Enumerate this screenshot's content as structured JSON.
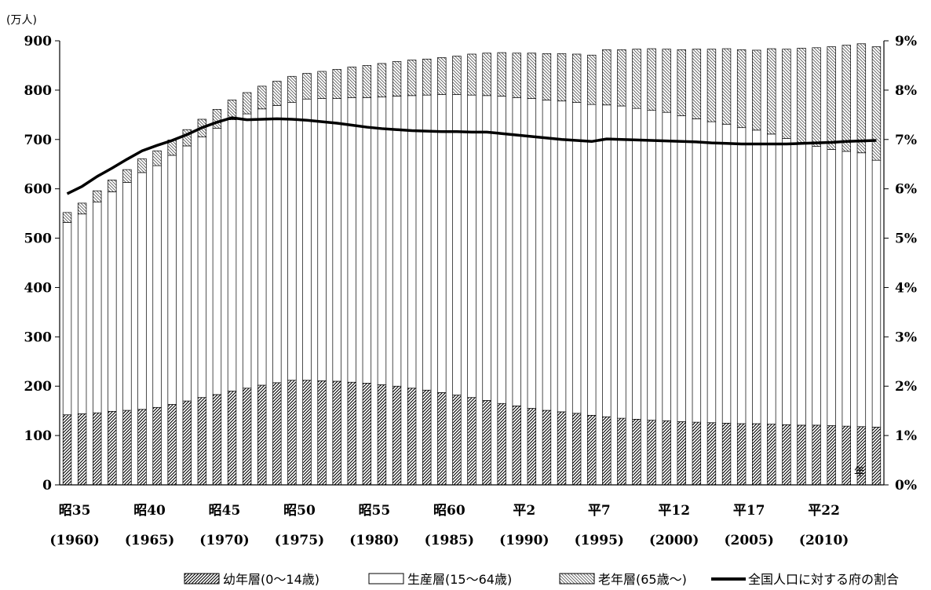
{
  "chart_data": {
    "type": "bar",
    "stacked": true,
    "unit_label": "(万人)",
    "xlabel_marker": "年",
    "years": [
      1960,
      1961,
      1962,
      1963,
      1964,
      1965,
      1966,
      1967,
      1968,
      1969,
      1970,
      1971,
      1972,
      1973,
      1974,
      1975,
      1976,
      1977,
      1978,
      1979,
      1980,
      1981,
      1982,
      1983,
      1984,
      1985,
      1986,
      1987,
      1988,
      1989,
      1990,
      1991,
      1992,
      1993,
      1994,
      1995,
      1996,
      1997,
      1998,
      1999,
      2000,
      2001,
      2002,
      2003,
      2004,
      2005,
      2006,
      2007,
      2008,
      2009,
      2010,
      2011,
      2012,
      2013,
      2014
    ],
    "x_tick_labels": [
      {
        "year": 1960,
        "era": "昭35",
        "western": "(1960)"
      },
      {
        "year": 1965,
        "era": "昭40",
        "western": "(1965)"
      },
      {
        "year": 1970,
        "era": "昭45",
        "western": "(1970)"
      },
      {
        "year": 1975,
        "era": "昭50",
        "western": "(1975)"
      },
      {
        "year": 1980,
        "era": "昭55",
        "western": "(1980)"
      },
      {
        "year": 1985,
        "era": "昭60",
        "western": "(1985)"
      },
      {
        "year": 1990,
        "era": "平2",
        "western": "(1990)"
      },
      {
        "year": 1995,
        "era": "平7",
        "western": "(1995)"
      },
      {
        "year": 2000,
        "era": "平12",
        "western": "(2000)"
      },
      {
        "year": 2005,
        "era": "平17",
        "western": "(2005)"
      },
      {
        "year": 2010,
        "era": "平22",
        "western": "(2010)"
      }
    ],
    "series": [
      {
        "name": "幼年層(0～14歳)",
        "pattern": "dense-hatch",
        "values": [
          142,
          144,
          146,
          149,
          151,
          153,
          157,
          163,
          170,
          177,
          183,
          190,
          196,
          202,
          207,
          212,
          212,
          211,
          210,
          208,
          206,
          203,
          200,
          196,
          192,
          187,
          182,
          177,
          171,
          165,
          160,
          155,
          151,
          148,
          145,
          141,
          138,
          135,
          133,
          131,
          130,
          128,
          127,
          126,
          125,
          124,
          124,
          123,
          122,
          121,
          121,
          120,
          119,
          118,
          117
        ]
      },
      {
        "name": "生産層(15～64歳)",
        "pattern": "none",
        "values": [
          390,
          405,
          427,
          445,
          462,
          480,
          490,
          505,
          517,
          528,
          540,
          550,
          556,
          560,
          562,
          563,
          570,
          572,
          573,
          577,
          579,
          583,
          588,
          593,
          598,
          604,
          609,
          613,
          618,
          623,
          625,
          628,
          629,
          630,
          630,
          630,
          632,
          633,
          630,
          628,
          625,
          620,
          615,
          610,
          606,
          600,
          595,
          588,
          580,
          572,
          565,
          560,
          557,
          555,
          541
        ]
      },
      {
        "name": "老年層(65歳～)",
        "pattern": "sparse-hatch",
        "values": [
          20,
          22,
          23,
          24,
          26,
          28,
          30,
          31,
          33,
          36,
          38,
          40,
          43,
          46,
          49,
          53,
          52,
          55,
          59,
          62,
          65,
          68,
          70,
          72,
          73,
          75,
          78,
          83,
          86,
          88,
          90,
          92,
          94,
          96,
          98,
          100,
          112,
          114,
          120,
          125,
          128,
          134,
          141,
          147,
          153,
          158,
          162,
          173,
          181,
          192,
          200,
          208,
          215,
          221,
          230
        ]
      }
    ],
    "line_series": {
      "name": "全国人口に対する府の割合",
      "axis": "right",
      "values": [
        5.9,
        6.05,
        6.25,
        6.42,
        6.6,
        6.77,
        6.88,
        6.98,
        7.1,
        7.24,
        7.35,
        7.44,
        7.4,
        7.41,
        7.42,
        7.41,
        7.39,
        7.36,
        7.33,
        7.29,
        7.25,
        7.22,
        7.2,
        7.18,
        7.17,
        7.16,
        7.16,
        7.15,
        7.15,
        7.12,
        7.09,
        7.06,
        7.03,
        7.0,
        6.98,
        6.96,
        7.01,
        7.0,
        6.99,
        6.98,
        6.97,
        6.96,
        6.95,
        6.93,
        6.92,
        6.91,
        6.91,
        6.91,
        6.91,
        6.92,
        6.93,
        6.94,
        6.96,
        6.97,
        6.98
      ]
    },
    "y_left": {
      "min": 0,
      "max": 900,
      "ticks": [
        0,
        100,
        200,
        300,
        400,
        500,
        600,
        700,
        800,
        900
      ]
    },
    "y_right": {
      "min": 0,
      "max": 9,
      "ticks": [
        "0%",
        "1%",
        "2%",
        "3%",
        "4%",
        "5%",
        "6%",
        "7%",
        "8%",
        "9%"
      ]
    },
    "grid": false,
    "legend_position": "bottom",
    "legend": [
      {
        "key": "young",
        "label": "幼年層(0～14歳)"
      },
      {
        "key": "working",
        "label": "生産層(15～64歳)"
      },
      {
        "key": "elder",
        "label": "老年層(65歳～)"
      },
      {
        "key": "ratio",
        "label": "全国人口に対する府の割合"
      }
    ]
  }
}
